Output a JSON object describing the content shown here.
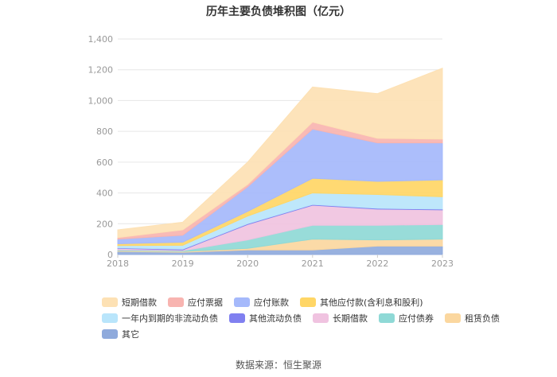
{
  "chart_data": {
    "type": "area",
    "title": "历年主要负债堆积图（亿元）",
    "xlabel": "",
    "ylabel": "",
    "categories": [
      "2018",
      "2019",
      "2020",
      "2021",
      "2022",
      "2023"
    ],
    "ylim": [
      0,
      1400
    ],
    "yticks": [
      "0",
      "200",
      "400",
      "600",
      "800",
      "1,000",
      "1,200",
      "1,400"
    ],
    "ytick_values": [
      0,
      200,
      400,
      600,
      800,
      1000,
      1200,
      1400
    ],
    "stacked": true,
    "series": [
      {
        "name": "其它",
        "color": "#8faadc",
        "values": [
          20,
          15,
          30,
          30,
          55,
          55
        ]
      },
      {
        "name": "租赁负债",
        "color": "#fbd79f",
        "values": [
          5,
          5,
          10,
          70,
          40,
          45
        ]
      },
      {
        "name": "应付债券",
        "color": "#8fd9d6",
        "values": [
          5,
          5,
          55,
          90,
          95,
          95
        ]
      },
      {
        "name": "长期借款",
        "color": "#f0c3e0",
        "values": [
          10,
          5,
          100,
          130,
          105,
          95
        ]
      },
      {
        "name": "其他流动负债",
        "color": "#8080f0",
        "values": [
          3,
          5,
          5,
          5,
          5,
          5
        ]
      },
      {
        "name": "一年内到期的非流动负债",
        "color": "#b9e5fb",
        "values": [
          15,
          25,
          50,
          75,
          90,
          80
        ]
      },
      {
        "name": "其他应付款(含利息和股利)",
        "color": "#ffd666",
        "values": [
          12,
          20,
          30,
          95,
          85,
          110
        ]
      },
      {
        "name": "应付账款",
        "color": "#a5b9fb",
        "values": [
          30,
          45,
          160,
          320,
          250,
          240
        ]
      },
      {
        "name": "应付票据",
        "color": "#f8b4b0",
        "values": [
          10,
          35,
          15,
          45,
          30,
          25
        ]
      },
      {
        "name": "短期借款",
        "color": "#fde1b4",
        "values": [
          50,
          50,
          145,
          228,
          290,
          460
        ]
      }
    ]
  },
  "legend": {
    "rows": [
      [
        {
          "name": "短期借款",
          "color": "#fde1b4"
        },
        {
          "name": "应付票据",
          "color": "#f8b4b0"
        },
        {
          "name": "应付账款",
          "color": "#a5b9fb"
        },
        {
          "name": "其他应付款(含利息和股利)",
          "color": "#ffd666"
        }
      ],
      [
        {
          "name": "一年内到期的非流动负债",
          "color": "#b9e5fb"
        },
        {
          "name": "其他流动负债",
          "color": "#8080f0"
        },
        {
          "name": "长期借款",
          "color": "#f0c3e0"
        },
        {
          "name": "应付债券",
          "color": "#8fd9d6"
        },
        {
          "name": "租赁负债",
          "color": "#fbd79f"
        }
      ],
      [
        {
          "name": "其它",
          "color": "#8faadc"
        }
      ]
    ]
  },
  "source": "数据来源：恒生聚源"
}
